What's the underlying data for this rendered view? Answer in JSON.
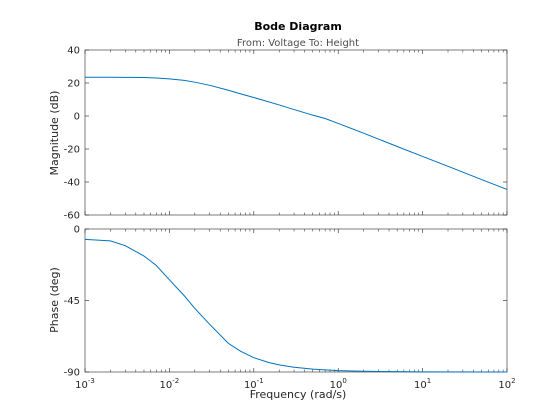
{
  "chart_data": {
    "type": "line",
    "title": "Bode Diagram",
    "subtitle": "From: Voltage  To: Height",
    "xlabel": "Frequency  (rad/s)",
    "xscale": "log",
    "xlim": [
      0.001,
      100
    ],
    "xticks": [
      {
        "base": "10",
        "exp": "-3"
      },
      {
        "base": "10",
        "exp": "-2"
      },
      {
        "base": "10",
        "exp": "-1"
      },
      {
        "base": "10",
        "exp": "0"
      },
      {
        "base": "10",
        "exp": "1"
      },
      {
        "base": "10",
        "exp": "2"
      }
    ],
    "line_color": "#0072bd",
    "grid": false,
    "panels": [
      {
        "name": "magnitude",
        "ylabel": "Magnitude (dB)",
        "ylim": [
          -60,
          40
        ],
        "yticks": [
          "40",
          "20",
          "0",
          "-20",
          "-40",
          "-60"
        ],
        "ytick_values": [
          40,
          20,
          0,
          -20,
          -40,
          -60
        ],
        "x": [
          0.001,
          0.002,
          0.003,
          0.005,
          0.007,
          0.01,
          0.015,
          0.02,
          0.03,
          0.05,
          0.07,
          0.1,
          0.2,
          0.3,
          0.5,
          0.7,
          1,
          2,
          5,
          10,
          20,
          50,
          100
        ],
        "y": [
          23.5,
          23.5,
          23.4,
          23.3,
          23.0,
          22.5,
          21.6,
          20.5,
          18.6,
          15.6,
          13.4,
          11.2,
          6.7,
          3.9,
          0.5,
          -1.5,
          -4.5,
          -10.4,
          -18.5,
          -24.5,
          -30.5,
          -38.5,
          -44.5
        ]
      },
      {
        "name": "phase",
        "ylabel": "Phase (deg)",
        "ylim": [
          -90,
          0
        ],
        "yticks": [
          "0",
          "-45",
          "-90"
        ],
        "ytick_values": [
          0,
          -45,
          -90
        ],
        "x": [
          0.001,
          0.002,
          0.003,
          0.005,
          0.007,
          0.01,
          0.015,
          0.02,
          0.03,
          0.05,
          0.07,
          0.1,
          0.15,
          0.2,
          0.3,
          0.5,
          1,
          2,
          5,
          10,
          100
        ],
        "y": [
          -6.5,
          -7.5,
          -10.5,
          -17,
          -23,
          -32,
          -42,
          -50,
          -60,
          -72,
          -77,
          -81,
          -84,
          -85.5,
          -87,
          -88.2,
          -89.1,
          -89.5,
          -89.8,
          -89.9,
          -90
        ]
      }
    ]
  }
}
